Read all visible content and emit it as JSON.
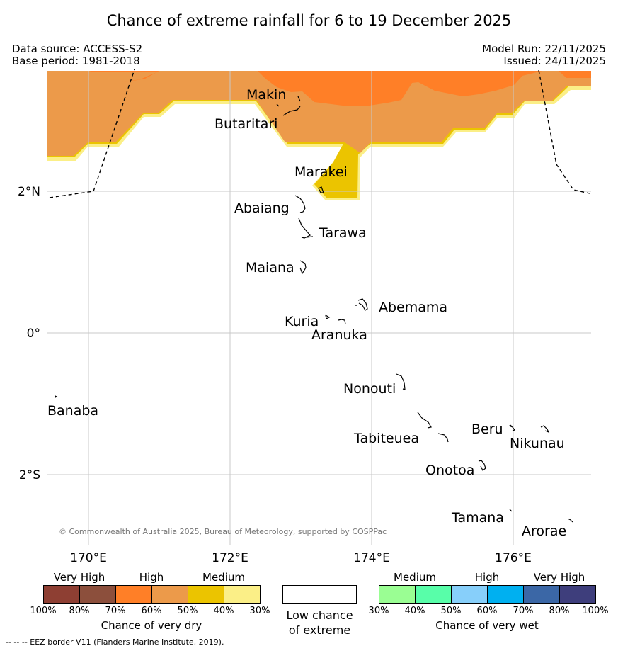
{
  "title": "Chance of extreme rainfall for 6 to 19 December 2025",
  "meta": {
    "data_source": "Data source: ACCESS-S2",
    "base_period": "Base period: 1981-2018",
    "model_run": "Model Run: 22/11/2025",
    "issued": "Issued: 24/11/2025"
  },
  "map": {
    "lon_ticks": [
      "170°E",
      "172°E",
      "174°E",
      "176°E"
    ],
    "lat_ticks": [
      "2°N",
      "0°",
      "2°S"
    ],
    "places": [
      "Makin",
      "Butaritari",
      "Marakei",
      "Abaiang",
      "Tarawa",
      "Maiana",
      "Abemama",
      "Kuria",
      "Aranuka",
      "Nonouti",
      "Banaba",
      "Tabiteuea",
      "Beru",
      "Nikunau",
      "Onotoa",
      "Tamana",
      "Arorae"
    ],
    "copyright": "© Commonwealth of Australia 2025, Bureau of Meteorology, supported by COSPPac"
  },
  "colors": {
    "dry_very_high_1": "#8e3f33",
    "dry_very_high_2": "#8c4f3c",
    "dry_high_1": "#ff7f27",
    "dry_high_2": "#ec9a4a",
    "dry_medium_1": "#ebc400",
    "dry_medium_2": "#fbef87",
    "wet_medium_1": "#9afe93",
    "wet_medium_2": "#58fea9",
    "wet_high_1": "#87cffa",
    "wet_high_2": "#00b0f0",
    "wet_very_high_1": "#3b67a6",
    "wet_very_high_2": "#3e3e7c"
  },
  "legend": {
    "dry": {
      "categories": [
        "Very High",
        "High",
        "Medium"
      ],
      "ticks": [
        "100%",
        "80%",
        "70%",
        "60%",
        "50%",
        "40%",
        "30%"
      ],
      "title": "Chance of very dry"
    },
    "low": {
      "line1": "Low chance",
      "line2": "of extreme"
    },
    "wet": {
      "categories": [
        "Medium",
        "High",
        "Very High"
      ],
      "ticks": [
        "30%",
        "40%",
        "50%",
        "60%",
        "70%",
        "80%",
        "100%"
      ],
      "title": "Chance of very wet"
    }
  },
  "footer": "--  --  -- EEZ border V11 (Flanders Marine Institute, 2019)."
}
